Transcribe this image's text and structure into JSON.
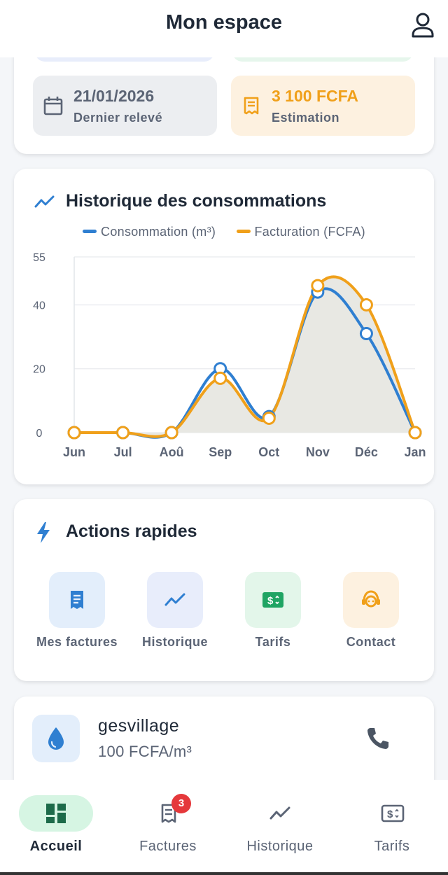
{
  "header": {
    "title": "Mon espace",
    "profile_icon": "person-outline-icon"
  },
  "summary": {
    "last_reading": {
      "value": "21/01/2026",
      "label": "Dernier relevé",
      "icon": "calendar-icon"
    },
    "estimate": {
      "value": "3 100 FCFA",
      "label": "Estimation",
      "icon": "receipt-icon"
    }
  },
  "chart_section": {
    "title": "Historique des consommations",
    "icon": "trending-up-icon"
  },
  "chart_data": {
    "type": "area",
    "categories": [
      "Jun",
      "Jul",
      "Aoû",
      "Sep",
      "Oct",
      "Nov",
      "Déc",
      "Jan"
    ],
    "series": [
      {
        "name": "Consommation (m³)",
        "color": "#2f7fd1",
        "values": [
          0,
          0,
          0,
          20,
          5,
          44,
          31,
          0
        ]
      },
      {
        "name": "Facturation (FCFA)",
        "color": "#f0a01a",
        "values": [
          0,
          0,
          0,
          17,
          4.5,
          46,
          40,
          0
        ]
      }
    ],
    "yticks": [
      0,
      20,
      40,
      55
    ],
    "ylim": [
      0,
      55
    ],
    "grid": true,
    "legend": "top"
  },
  "quick_actions": {
    "title": "Actions rapides",
    "icon": "bolt-icon",
    "items": [
      {
        "label": "Mes factures",
        "icon": "receipt-icon"
      },
      {
        "label": "Historique",
        "icon": "trending-up-icon"
      },
      {
        "label": "Tarifs",
        "icon": "dollar-bill-icon"
      },
      {
        "label": "Contact",
        "icon": "support-agent-icon"
      }
    ]
  },
  "provider": {
    "name": "gesvillage",
    "price": "100 FCFA/m³",
    "icon": "water-drop-icon",
    "action_icon": "phone-icon"
  },
  "bottom_nav": {
    "items": [
      {
        "label": "Accueil",
        "icon": "dashboard-icon",
        "active": true
      },
      {
        "label": "Factures",
        "icon": "receipt-icon",
        "badge": "3"
      },
      {
        "label": "Historique",
        "icon": "trending-up-icon"
      },
      {
        "label": "Tarifs",
        "icon": "dollar-bill-icon"
      }
    ]
  },
  "colors": {
    "primary_blue": "#2f7fd1",
    "accent_orange": "#f0a01a",
    "active_green": "#1d6b4a",
    "badge_red": "#e5383b"
  }
}
